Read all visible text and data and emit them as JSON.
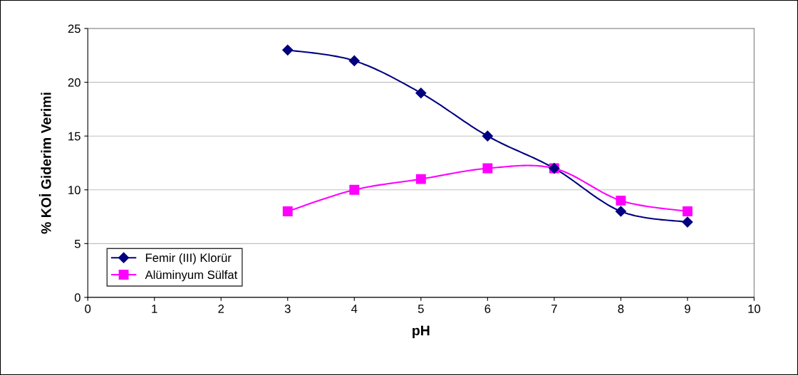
{
  "chart_data": {
    "type": "line",
    "xlabel": "pH",
    "ylabel": "% KOİ Giderim Verimi",
    "x": [
      3,
      4,
      5,
      6,
      7,
      8,
      9
    ],
    "series": [
      {
        "name": "Femir (III) Klorür",
        "color": "#000080",
        "marker": "diamond",
        "values": [
          23,
          22,
          19,
          15,
          12,
          8,
          7
        ]
      },
      {
        "name": "Alüminyum Sülfat",
        "color": "#ff00ff",
        "marker": "square",
        "values": [
          8,
          10,
          11,
          12,
          12,
          9,
          8
        ]
      }
    ],
    "xlim": [
      0,
      10
    ],
    "xticks": [
      0,
      1,
      2,
      3,
      4,
      5,
      6,
      7,
      8,
      9,
      10
    ],
    "ylim": [
      0,
      25
    ],
    "yticks": [
      0,
      5,
      10,
      15,
      20,
      25
    ],
    "grid": "y",
    "legend": "bottom left",
    "line_style": "solid"
  }
}
